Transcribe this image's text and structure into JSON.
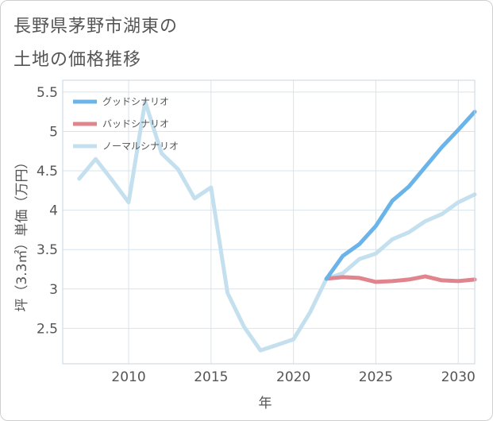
{
  "header": {
    "title_line1": "長野県茅野市湖東の",
    "title_line2": "土地の価格推移"
  },
  "chart_data": {
    "type": "line",
    "xlabel": "年",
    "ylabel": "坪（3.3㎡）単価（万円）",
    "xlim": [
      2006,
      2031
    ],
    "ylim": [
      2.05,
      5.65
    ],
    "x_ticks": [
      2010,
      2015,
      2020,
      2025,
      2030
    ],
    "y_ticks": [
      2.5,
      3,
      3.5,
      4,
      4.5,
      5,
      5.5
    ],
    "y_tick_labels": [
      "2.5",
      "3",
      "3.5",
      "4",
      "4.5",
      "5",
      "5.5"
    ],
    "grid": true,
    "legend_position": "top-left",
    "series": [
      {
        "name": "グッドシナリオ",
        "color": "#6ab4ea",
        "x": [
          2022,
          2023,
          2024,
          2025,
          2026,
          2027,
          2028,
          2029,
          2030,
          2031
        ],
        "values": [
          3.13,
          3.42,
          3.57,
          3.8,
          4.12,
          4.3,
          4.55,
          4.8,
          5.02,
          5.25
        ]
      },
      {
        "name": "バッドシナリオ",
        "color": "#e0848d",
        "x": [
          2022,
          2023,
          2024,
          2025,
          2026,
          2027,
          2028,
          2029,
          2030,
          2031
        ],
        "values": [
          3.13,
          3.15,
          3.14,
          3.09,
          3.1,
          3.12,
          3.16,
          3.11,
          3.1,
          3.12
        ]
      },
      {
        "name": "ノーマルシナリオ",
        "color": "#c4e0ef",
        "x": [
          2007,
          2008,
          2009,
          2010,
          2011,
          2012,
          2013,
          2014,
          2015,
          2016,
          2017,
          2018,
          2019,
          2020,
          2021,
          2022,
          2023,
          2024,
          2025,
          2026,
          2027,
          2028,
          2029,
          2030,
          2031
        ],
        "values": [
          4.4,
          4.65,
          4.38,
          4.1,
          5.38,
          4.72,
          4.52,
          4.15,
          4.29,
          2.95,
          2.52,
          2.22,
          2.29,
          2.36,
          2.7,
          3.13,
          3.2,
          3.38,
          3.45,
          3.63,
          3.72,
          3.86,
          3.95,
          4.1,
          4.2
        ]
      }
    ]
  }
}
